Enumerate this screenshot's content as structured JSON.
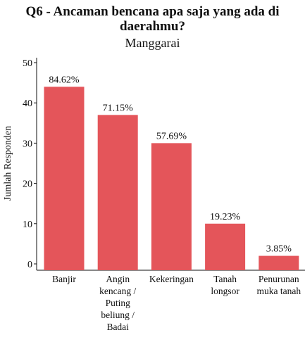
{
  "chart_data": {
    "type": "bar",
    "title": "Q6 - Ancaman bencana apa saja yang ada di daerahmu?",
    "subtitle": "Manggarai",
    "ylabel": "Jumlah Responden",
    "xlabel": "",
    "ylim": [
      0,
      50
    ],
    "yticks": [
      0,
      10,
      20,
      30,
      40,
      50
    ],
    "grid": false,
    "bar_color": "#e4555a",
    "categories": [
      [
        "Banjir"
      ],
      [
        "Angin",
        "kencang /",
        "Puting",
        "beliung /",
        "Badai"
      ],
      [
        "Kekeringan"
      ],
      [
        "Tanah",
        "longsor"
      ],
      [
        "Penurunan",
        "muka tanah"
      ]
    ],
    "values": [
      44,
      37,
      30,
      10,
      2
    ],
    "data_labels": [
      "84.62%",
      "71.15%",
      "57.69%",
      "19.23%",
      "3.85%"
    ]
  }
}
